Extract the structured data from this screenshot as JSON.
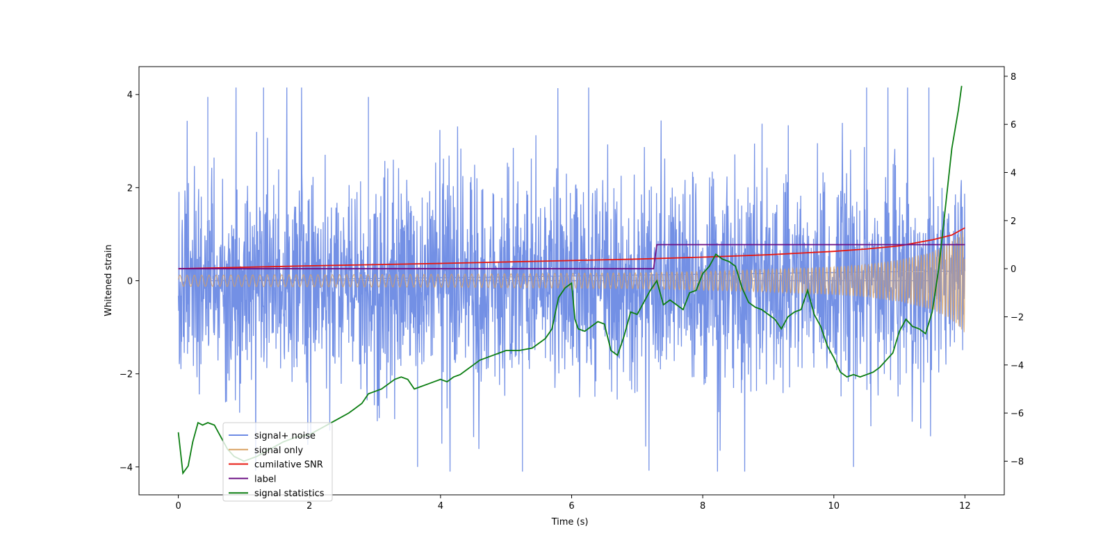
{
  "chart_data": {
    "type": "line",
    "xlabel": "Time (s)",
    "ylabel": "Whitened strain",
    "xlim": [
      -0.6,
      12.6
    ],
    "ylim": [
      -4.6,
      4.6
    ],
    "y2lim": [
      -9.4,
      8.4
    ],
    "x_ticks": [
      0,
      2,
      4,
      6,
      8,
      10,
      12
    ],
    "x_tick_labels": [
      "0",
      "2",
      "4",
      "6",
      "8",
      "10",
      "12"
    ],
    "y_ticks": [
      4,
      2,
      0,
      -2,
      -4
    ],
    "y_tick_labels": [
      "4",
      "2",
      "0",
      "−2",
      "−4"
    ],
    "y2_ticks": [
      8,
      6,
      4,
      2,
      0,
      -2,
      -4,
      -6,
      -8
    ],
    "y2_tick_labels": [
      "8",
      "6",
      "4",
      "2",
      "0",
      "−2",
      "−4",
      "−6",
      "−8"
    ],
    "grid": false,
    "legend_position": "lower-left",
    "series": [
      {
        "name": "signal+ noise",
        "color": "#6c8ae4",
        "axis": "left",
        "kind": "noise",
        "x_range": [
          0,
          12
        ],
        "band_core": [
          -1.6,
          1.6
        ],
        "peak_max": 4.15,
        "peak_min": -4.1,
        "notable_peaks": [
          {
            "x": 0.45,
            "y": 3.95
          },
          {
            "x": 1.3,
            "y": 4.15
          },
          {
            "x": 2.9,
            "y": 3.95
          },
          {
            "x": 11.45,
            "y": 4.15
          },
          {
            "x": 10.5,
            "y": 4.15
          },
          {
            "x": 5.25,
            "y": -4.1
          },
          {
            "x": 10.3,
            "y": -4.0
          },
          {
            "x": 3.65,
            "y": -4.0
          }
        ]
      },
      {
        "name": "signal only",
        "color": "#d9a060",
        "axis": "left",
        "kind": "chirp",
        "x": [
          0,
          2,
          4,
          6,
          7,
          8,
          9,
          10,
          10.5,
          11,
          11.5,
          11.8,
          12
        ],
        "amplitude": [
          0.12,
          0.13,
          0.14,
          0.16,
          0.17,
          0.2,
          0.24,
          0.3,
          0.35,
          0.45,
          0.62,
          0.85,
          1.13
        ]
      },
      {
        "name": "cumilative SNR",
        "color": "#e8160e",
        "axis": "right",
        "x": [
          0,
          2,
          4,
          6,
          7,
          8,
          9,
          10,
          10.5,
          11,
          11.5,
          11.8,
          12
        ],
        "values": [
          0.0,
          0.12,
          0.22,
          0.34,
          0.4,
          0.48,
          0.58,
          0.72,
          0.82,
          0.95,
          1.2,
          1.4,
          1.7
        ]
      },
      {
        "name": "label",
        "color": "#6a0d83",
        "axis": "right",
        "x": [
          0,
          7.25,
          7.3,
          12
        ],
        "values": [
          0.0,
          0.0,
          1.0,
          1.0
        ]
      },
      {
        "name": "signal statistics",
        "color": "#0a7d10",
        "axis": "right",
        "x": [
          0,
          0.07,
          0.15,
          0.22,
          0.3,
          0.37,
          0.45,
          0.55,
          0.65,
          0.75,
          0.85,
          1.0,
          1.2,
          1.4,
          1.6,
          1.8,
          2.0,
          2.2,
          2.4,
          2.6,
          2.8,
          2.9,
          3.0,
          3.1,
          3.2,
          3.3,
          3.4,
          3.5,
          3.6,
          3.7,
          3.8,
          3.9,
          4.0,
          4.1,
          4.2,
          4.3,
          4.4,
          4.5,
          4.6,
          4.7,
          4.8,
          4.9,
          5.0,
          5.2,
          5.4,
          5.5,
          5.6,
          5.7,
          5.8,
          5.9,
          6.0,
          6.05,
          6.1,
          6.2,
          6.3,
          6.4,
          6.5,
          6.6,
          6.7,
          6.8,
          6.9,
          7.0,
          7.1,
          7.2,
          7.3,
          7.4,
          7.5,
          7.6,
          7.7,
          7.8,
          7.9,
          8.0,
          8.1,
          8.2,
          8.3,
          8.4,
          8.5,
          8.6,
          8.7,
          8.8,
          8.9,
          9.0,
          9.1,
          9.2,
          9.3,
          9.4,
          9.5,
          9.6,
          9.7,
          9.8,
          9.9,
          10.0,
          10.1,
          10.2,
          10.3,
          10.4,
          10.5,
          10.6,
          10.7,
          10.8,
          10.9,
          11.0,
          11.1,
          11.2,
          11.3,
          11.4,
          11.5,
          11.6,
          11.7,
          11.8,
          11.9,
          11.95
        ],
        "values": [
          -6.8,
          -8.5,
          -8.2,
          -7.2,
          -6.4,
          -6.5,
          -6.4,
          -6.5,
          -7.0,
          -7.5,
          -7.8,
          -8.0,
          -7.8,
          -7.5,
          -7.2,
          -7.0,
          -6.9,
          -6.6,
          -6.3,
          -6.0,
          -5.6,
          -5.2,
          -5.1,
          -5.0,
          -4.8,
          -4.6,
          -4.5,
          -4.6,
          -5.0,
          -4.9,
          -4.8,
          -4.7,
          -4.6,
          -4.7,
          -4.5,
          -4.4,
          -4.2,
          -4.0,
          -3.8,
          -3.7,
          -3.6,
          -3.5,
          -3.4,
          -3.4,
          -3.3,
          -3.1,
          -2.9,
          -2.5,
          -1.2,
          -0.8,
          -0.6,
          -2.1,
          -2.5,
          -2.6,
          -2.4,
          -2.2,
          -2.3,
          -3.4,
          -3.6,
          -2.8,
          -1.8,
          -1.9,
          -1.4,
          -0.9,
          -0.5,
          -1.5,
          -1.3,
          -1.5,
          -1.7,
          -1.0,
          -0.9,
          -0.2,
          0.1,
          0.6,
          0.4,
          0.3,
          0.1,
          -0.8,
          -1.4,
          -1.6,
          -1.7,
          -1.9,
          -2.1,
          -2.5,
          -2.0,
          -1.8,
          -1.7,
          -0.9,
          -1.9,
          -2.4,
          -3.2,
          -3.7,
          -4.3,
          -4.5,
          -4.4,
          -4.5,
          -4.4,
          -4.3,
          -4.1,
          -3.8,
          -3.5,
          -2.6,
          -2.1,
          -2.4,
          -2.5,
          -2.7,
          -1.8,
          0.0,
          2.5,
          5.0,
          6.6,
          7.6
        ]
      }
    ],
    "legend": [
      "signal+ noise",
      "signal only",
      "cumilative SNR",
      "label",
      "signal statistics"
    ]
  }
}
